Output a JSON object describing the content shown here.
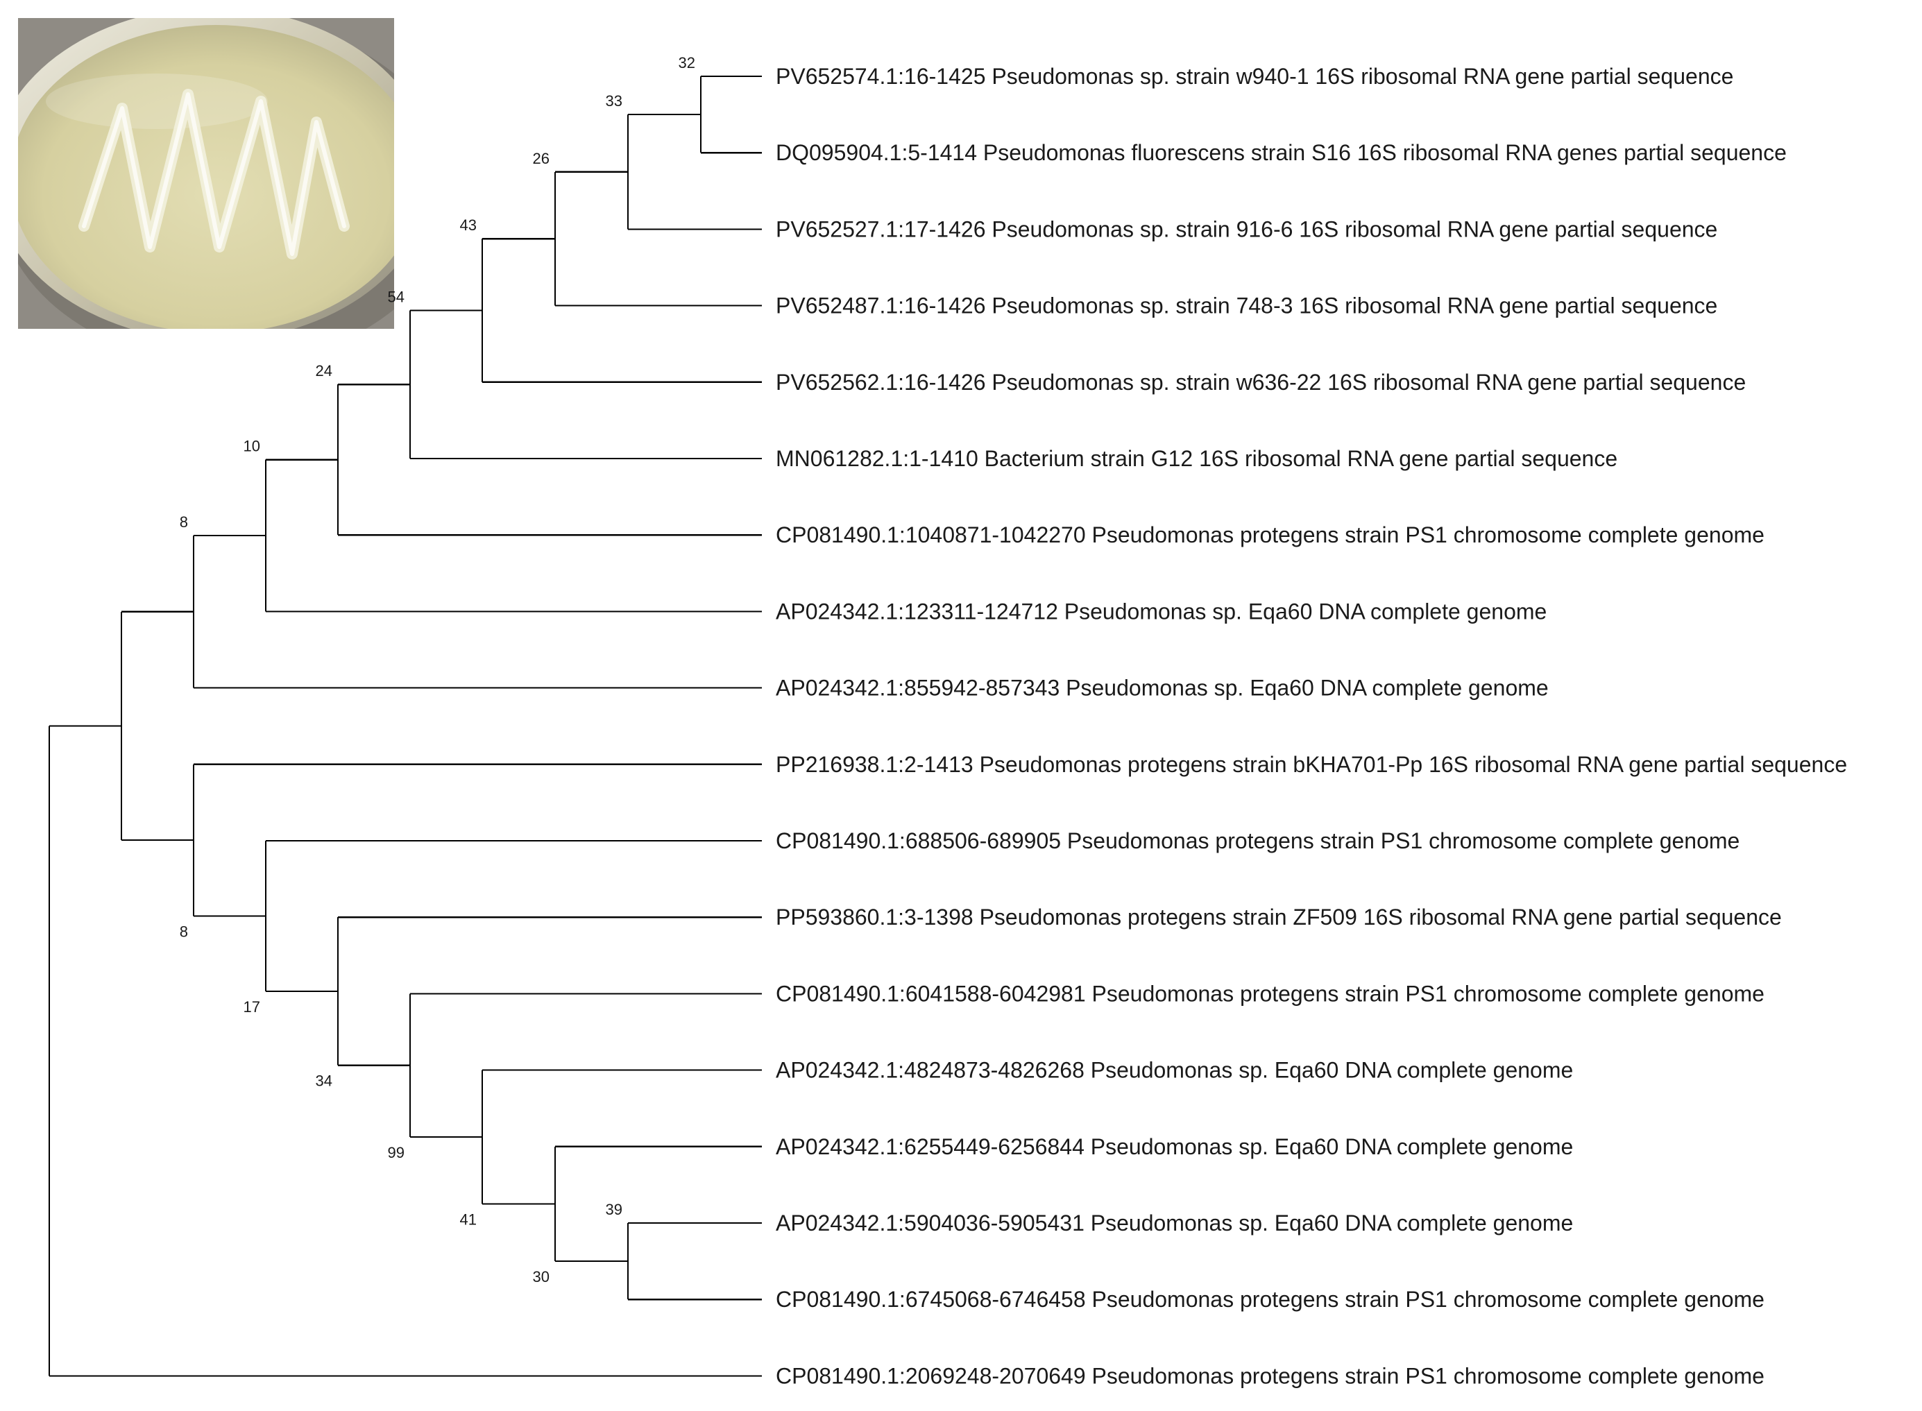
{
  "figure": {
    "photo": {
      "subject": "petri-dish-culture",
      "colors": {
        "background": "#8f8b84",
        "dish_rim": "#cfcab4",
        "agar": "#d8d3a6",
        "colony": "#eeeed8"
      }
    },
    "tree": {
      "line_color": "#000000",
      "leaves": [
        {
          "id": "L1",
          "label": "PV652574.1:16-1425 Pseudomonas sp. strain w940-1 16S ribosomal RNA gene partial sequence"
        },
        {
          "id": "L2",
          "label": "DQ095904.1:5-1414 Pseudomonas fluorescens strain S16 16S ribosomal RNA genes partial sequence"
        },
        {
          "id": "L3",
          "label": "PV652527.1:17-1426 Pseudomonas sp. strain 916-6 16S ribosomal RNA gene partial sequence"
        },
        {
          "id": "L4",
          "label": "PV652487.1:16-1426 Pseudomonas sp. strain 748-3 16S ribosomal RNA gene partial sequence"
        },
        {
          "id": "L5",
          "label": "PV652562.1:16-1426 Pseudomonas sp. strain w636-22 16S ribosomal RNA gene partial sequence"
        },
        {
          "id": "L6",
          "label": "MN061282.1:1-1410 Bacterium strain G12 16S ribosomal RNA gene partial sequence"
        },
        {
          "id": "L7",
          "label": "CP081490.1:1040871-1042270 Pseudomonas protegens strain PS1 chromosome complete genome"
        },
        {
          "id": "L8",
          "label": "AP024342.1:123311-124712 Pseudomonas sp. Eqa60 DNA complete genome"
        },
        {
          "id": "L9",
          "label": "AP024342.1:855942-857343 Pseudomonas sp. Eqa60 DNA complete genome"
        },
        {
          "id": "L10",
          "label": "PP216938.1:2-1413 Pseudomonas protegens strain bKHA701-Pp 16S ribosomal RNA gene partial sequence"
        },
        {
          "id": "L11",
          "label": "CP081490.1:688506-689905 Pseudomonas protegens strain PS1 chromosome complete genome"
        },
        {
          "id": "L12",
          "label": "PP593860.1:3-1398 Pseudomonas protegens strain ZF509 16S ribosomal RNA gene partial sequence"
        },
        {
          "id": "L13",
          "label": "CP081490.1:6041588-6042981 Pseudomonas protegens strain PS1 chromosome complete genome"
        },
        {
          "id": "L14",
          "label": "AP024342.1:4824873-4826268 Pseudomonas sp. Eqa60 DNA complete genome"
        },
        {
          "id": "L15",
          "label": "AP024342.1:6255449-6256844 Pseudomonas sp. Eqa60 DNA complete genome"
        },
        {
          "id": "L16",
          "label": "AP024342.1:5904036-5905431 Pseudomonas sp. Eqa60 DNA complete genome"
        },
        {
          "id": "L17",
          "label": "CP081490.1:6745068-6746458 Pseudomonas protegens strain PS1 chromosome complete genome"
        },
        {
          "id": "L18",
          "label": "CP081490.1:2069248-2070649 Pseudomonas protegens strain PS1 chromosome complete genome"
        }
      ],
      "nodes": [
        {
          "id": "n32a",
          "support": "32",
          "children": [
            "L1",
            "L2"
          ]
        },
        {
          "id": "n33",
          "support": "33",
          "children": [
            "n32a",
            "L3"
          ]
        },
        {
          "id": "n26",
          "support": "26",
          "children": [
            "n33",
            "L4"
          ]
        },
        {
          "id": "n43",
          "support": "43",
          "children": [
            "n26",
            "L5"
          ]
        },
        {
          "id": "n54",
          "support": "54",
          "children": [
            "n43",
            "L6"
          ]
        },
        {
          "id": "n24",
          "support": "24",
          "children": [
            "n54",
            "L7"
          ]
        },
        {
          "id": "n10",
          "support": "10",
          "children": [
            "n24",
            "L8"
          ]
        },
        {
          "id": "n8a",
          "support": "8",
          "children": [
            "n10",
            "L9"
          ]
        },
        {
          "id": "n39",
          "support": "39",
          "children": [
            "L16",
            "L17"
          ]
        },
        {
          "id": "n30",
          "support": "30",
          "children": [
            "L15",
            "n39"
          ]
        },
        {
          "id": "n41",
          "support": "41",
          "children": [
            "L14",
            "n30"
          ]
        },
        {
          "id": "n99",
          "support": "99",
          "children": [
            "L13",
            "n41"
          ]
        },
        {
          "id": "n34",
          "support": "34",
          "children": [
            "L12",
            "n99"
          ]
        },
        {
          "id": "n17",
          "support": "17",
          "children": [
            "L11",
            "n34"
          ]
        },
        {
          "id": "n8b",
          "support": "8",
          "children": [
            "L10",
            "n17"
          ]
        },
        {
          "id": "nTop",
          "support": "",
          "children": [
            "n8a",
            "n8b"
          ]
        },
        {
          "id": "root",
          "support": "",
          "children": [
            "nTop",
            "L18"
          ]
        }
      ]
    }
  }
}
